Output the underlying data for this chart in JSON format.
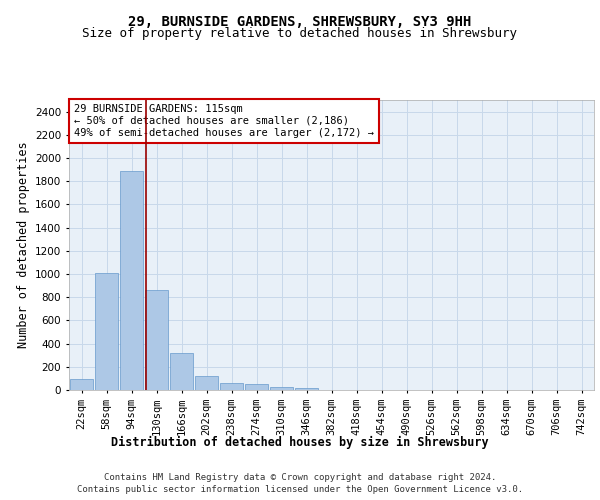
{
  "title_line1": "29, BURNSIDE GARDENS, SHREWSBURY, SY3 9HH",
  "title_line2": "Size of property relative to detached houses in Shrewsbury",
  "xlabel": "Distribution of detached houses by size in Shrewsbury",
  "ylabel": "Number of detached properties",
  "bar_color": "#adc8e6",
  "bar_edge_color": "#6699cc",
  "grid_color": "#c8d8ea",
  "background_color": "#e8f0f8",
  "vline_color": "#990000",
  "annotation_box_color": "#cc0000",
  "annotation_text_line1": "29 BURNSIDE GARDENS: 115sqm",
  "annotation_text_line2": "← 50% of detached houses are smaller (2,186)",
  "annotation_text_line3": "49% of semi-detached houses are larger (2,172) →",
  "categories": [
    "22sqm",
    "58sqm",
    "94sqm",
    "130sqm",
    "166sqm",
    "202sqm",
    "238sqm",
    "274sqm",
    "310sqm",
    "346sqm",
    "382sqm",
    "418sqm",
    "454sqm",
    "490sqm",
    "526sqm",
    "562sqm",
    "598sqm",
    "634sqm",
    "670sqm",
    "706sqm",
    "742sqm"
  ],
  "values": [
    95,
    1010,
    1890,
    860,
    315,
    120,
    60,
    50,
    30,
    20,
    0,
    0,
    0,
    0,
    0,
    0,
    0,
    0,
    0,
    0,
    0
  ],
  "ylim": [
    0,
    2500
  ],
  "yticks": [
    0,
    200,
    400,
    600,
    800,
    1000,
    1200,
    1400,
    1600,
    1800,
    2000,
    2200,
    2400
  ],
  "footer_line1": "Contains HM Land Registry data © Crown copyright and database right 2024.",
  "footer_line2": "Contains public sector information licensed under the Open Government Licence v3.0.",
  "title_fontsize": 10,
  "subtitle_fontsize": 9,
  "axis_label_fontsize": 8.5,
  "tick_fontsize": 7.5,
  "annotation_fontsize": 7.5,
  "footer_fontsize": 6.5
}
